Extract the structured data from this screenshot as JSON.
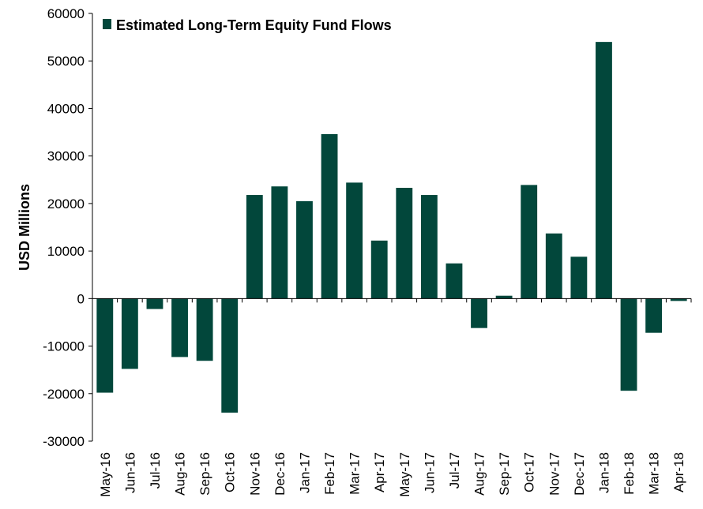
{
  "chart_data": {
    "type": "bar",
    "title": "",
    "xlabel": "",
    "ylabel": "USD Millions",
    "ylim": [
      -30000,
      60000
    ],
    "yticks": [
      "60000",
      "50000",
      "40000",
      "30000",
      "20000",
      "10000",
      "0",
      "-10000",
      "-20000",
      "-30000"
    ],
    "grid": false,
    "legend_position": "top-left",
    "colors": {
      "bar": "#02473B",
      "axis": "#000000"
    },
    "categories": [
      "May-16",
      "Jun-16",
      "Jul-16",
      "Aug-16",
      "Sep-16",
      "Oct-16",
      "Nov-16",
      "Dec-16",
      "Jan-17",
      "Feb-17",
      "Mar-17",
      "Apr-17",
      "May-17",
      "Jun-17",
      "Jul-17",
      "Aug-17",
      "Sep-17",
      "Oct-17",
      "Nov-17",
      "Dec-17",
      "Jan-18",
      "Feb-18",
      "Mar-18",
      "Apr-18"
    ],
    "series": [
      {
        "name": "Estimated Long-Term Equity Fund Flows",
        "values": [
          -19800,
          -14800,
          -2200,
          -12300,
          -13100,
          -24000,
          21800,
          23600,
          20500,
          34600,
          24400,
          12200,
          23300,
          21800,
          7400,
          -6200,
          600,
          23900,
          13700,
          8800,
          54000,
          -19400,
          -7200,
          -500
        ]
      }
    ]
  }
}
